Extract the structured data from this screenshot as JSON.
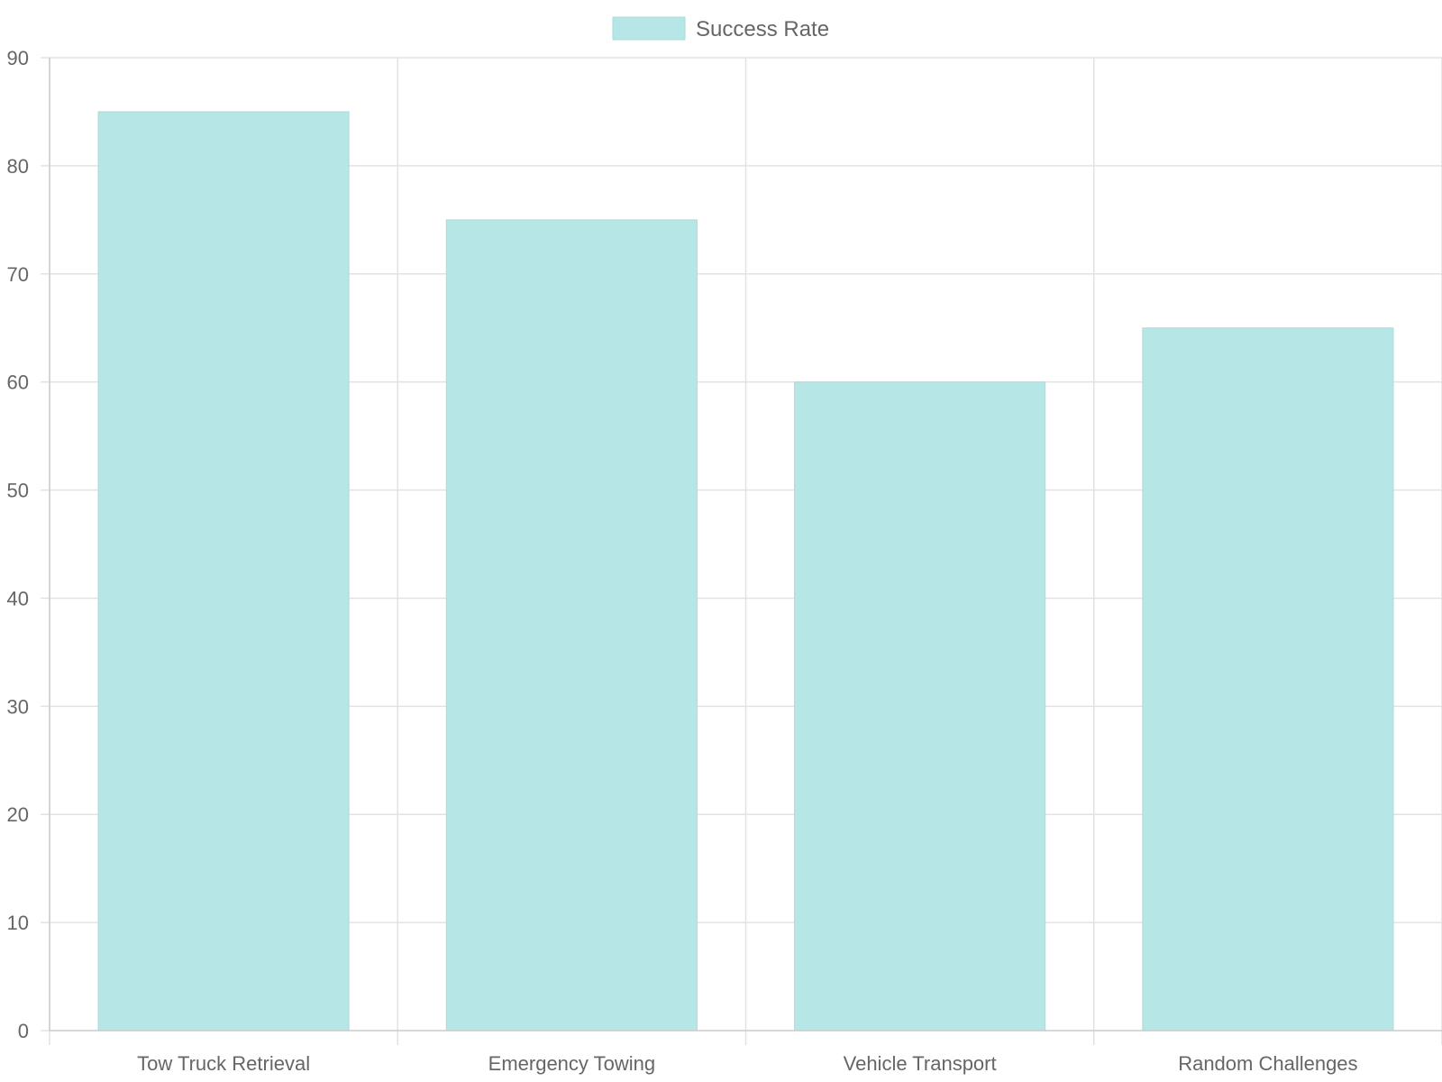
{
  "chart_data": {
    "type": "bar",
    "categories": [
      "Tow Truck Retrieval",
      "Emergency Towing",
      "Vehicle Transport",
      "Random Challenges"
    ],
    "series": [
      {
        "name": "Success Rate",
        "values": [
          85,
          75,
          60,
          65
        ],
        "color": "#b7e6e6",
        "border_color": "#a9dcdc"
      }
    ],
    "ylim": [
      0,
      90
    ],
    "yticks": [
      0,
      10,
      20,
      30,
      40,
      50,
      60,
      70,
      80,
      90
    ],
    "grid": true,
    "legend_position": "top",
    "title": "",
    "xlabel": "",
    "ylabel": ""
  }
}
